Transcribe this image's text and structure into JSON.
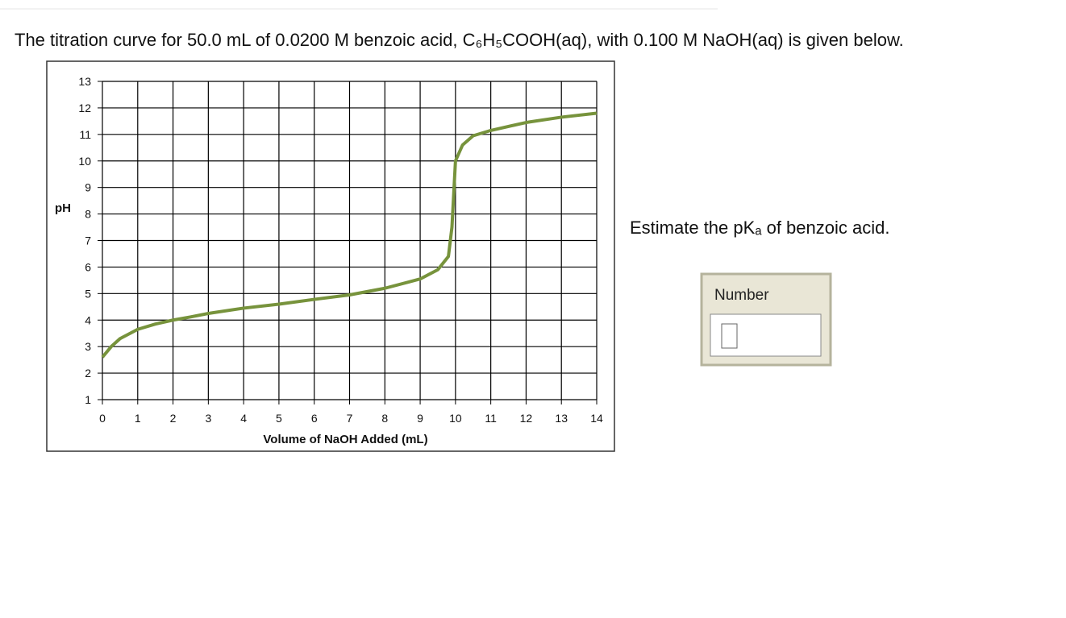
{
  "question": {
    "text": "The titration curve for 50.0 mL of 0.0200 M benzoic acid, C₆H₅COOH(aq), with 0.100 M NaOH(aq) is given below.",
    "prompt": "Estimate the pKₐ of benzoic acid."
  },
  "answer": {
    "label": "Number"
  },
  "chart_data": {
    "type": "line",
    "x_label": "Volume of NaOH Added (mL)",
    "y_label": "pH",
    "x": [
      0,
      0.25,
      0.5,
      1,
      1.5,
      2,
      2.5,
      3,
      4,
      5,
      6,
      7,
      8,
      9,
      9.5,
      9.8,
      9.9,
      10,
      10.2,
      10.5,
      11,
      12,
      13,
      14
    ],
    "series": [
      {
        "name": "pH",
        "color": "#77933c",
        "values": [
          2.6,
          3.0,
          3.3,
          3.65,
          3.85,
          4.0,
          4.12,
          4.25,
          4.45,
          4.6,
          4.78,
          4.95,
          5.2,
          5.55,
          5.9,
          6.4,
          7.5,
          10.0,
          10.6,
          10.95,
          11.15,
          11.45,
          11.65,
          11.8
        ]
      }
    ],
    "xlim": [
      0,
      14
    ],
    "xticks": [
      0,
      1,
      2,
      3,
      4,
      5,
      6,
      7,
      8,
      9,
      10,
      11,
      12,
      13,
      14
    ],
    "ylim": [
      1,
      13
    ],
    "yticks": [
      1,
      2,
      3,
      4,
      5,
      6,
      7,
      8,
      9,
      10,
      11,
      12,
      13
    ],
    "grid": true
  }
}
